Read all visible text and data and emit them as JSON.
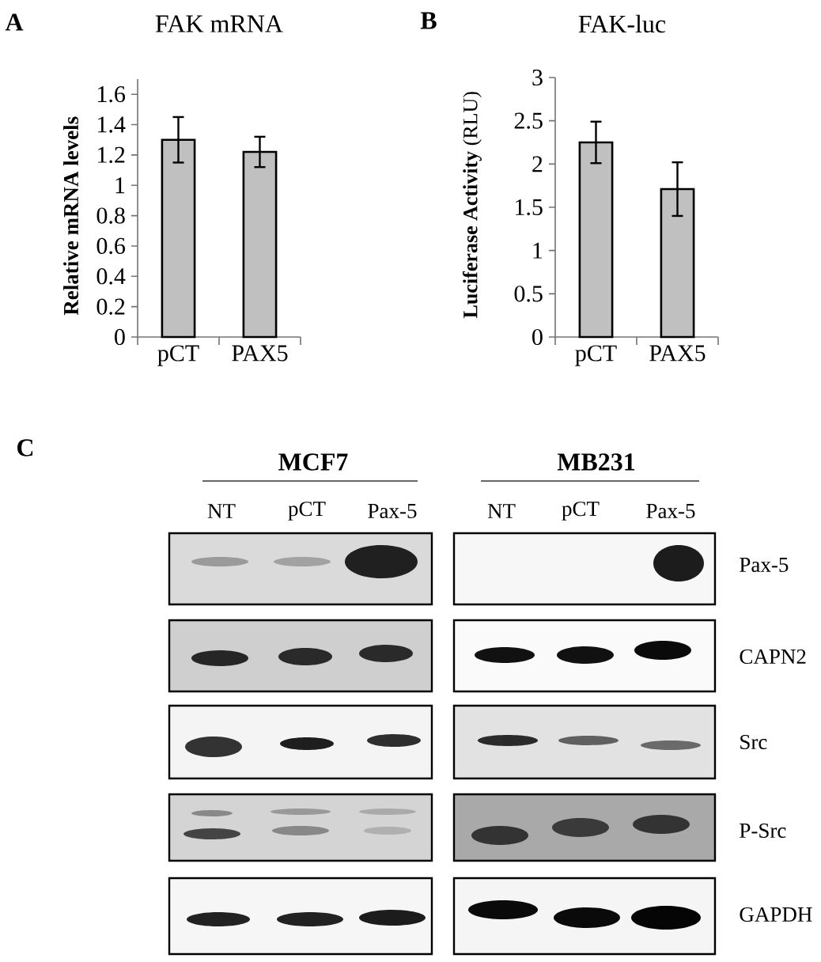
{
  "chart_data": [
    {
      "type": "bar",
      "title": "FAK mRNA",
      "ylabel": "Relative mRNA levels",
      "categories": [
        "pCT",
        "PAX5"
      ],
      "values": [
        1.3,
        1.22
      ],
      "errors": [
        0.15,
        0.1
      ],
      "color": "#c0c0c0",
      "ylim": [
        0,
        1.7
      ],
      "yticks": [
        0,
        0.2,
        0.4,
        0.6,
        0.8,
        1,
        1.2,
        1.4,
        1.6
      ],
      "annotations": [
        "A"
      ]
    },
    {
      "type": "bar",
      "title": "FAK-luc",
      "ylabel": "**Luciferase Activity** (RLU)",
      "categories": [
        "pCT",
        "PAX5"
      ],
      "values": [
        2.25,
        1.71
      ],
      "errors": [
        0.24,
        0.31
      ],
      "color": "#c0c0c0",
      "ylim": [
        0,
        3
      ],
      "yticks": [
        0,
        0.5,
        1,
        1.5,
        2,
        2.5,
        3
      ],
      "annotations": [
        "B"
      ]
    },
    {
      "type": "other",
      "annotations": [
        "C",
        "MCF7",
        "MB231",
        "NT",
        "pCT",
        "Pax-5",
        "NT",
        "pCT",
        "Pax-5",
        "Pax-5",
        "CAPN2",
        "Src",
        "P-Src",
        "GAPDH"
      ]
    }
  ]
}
